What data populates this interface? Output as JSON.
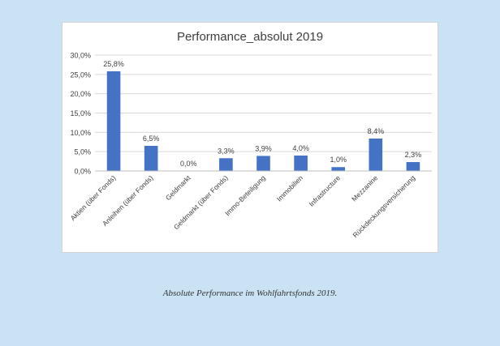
{
  "caption": "Absolute Performance im Wohlfahrtsfonds 2019.",
  "colors": {
    "bar": "#4472c4",
    "grid": "#d9d9d9",
    "text": "#404040"
  },
  "chart_data": {
    "type": "bar",
    "title": "Performance_absolut 2019",
    "categories": [
      "Aktien (über Fonds)",
      "Anleihen (über Fonds)",
      "Geldmarkt",
      "Geldmarkt (über Fonds)",
      "Immo-Beteiligung",
      "Immobilien",
      "Infrastructure",
      "Mezzanine",
      "Rückdeckungsversicherung"
    ],
    "values": [
      25.8,
      6.5,
      0.0,
      3.3,
      3.9,
      4.0,
      1.0,
      8.4,
      2.3
    ],
    "data_labels": [
      "25,8%",
      "6,5%",
      "0,0%",
      "3,3%",
      "3,9%",
      "4,0%",
      "1,0%",
      "8,4%",
      "2,3%"
    ],
    "y_ticks": [
      "0,0%",
      "5,0%",
      "10,0%",
      "15,0%",
      "20,0%",
      "25,0%",
      "30,0%"
    ],
    "ylim": [
      0,
      30
    ],
    "y_step": 5,
    "grid": true,
    "legend": "none"
  }
}
